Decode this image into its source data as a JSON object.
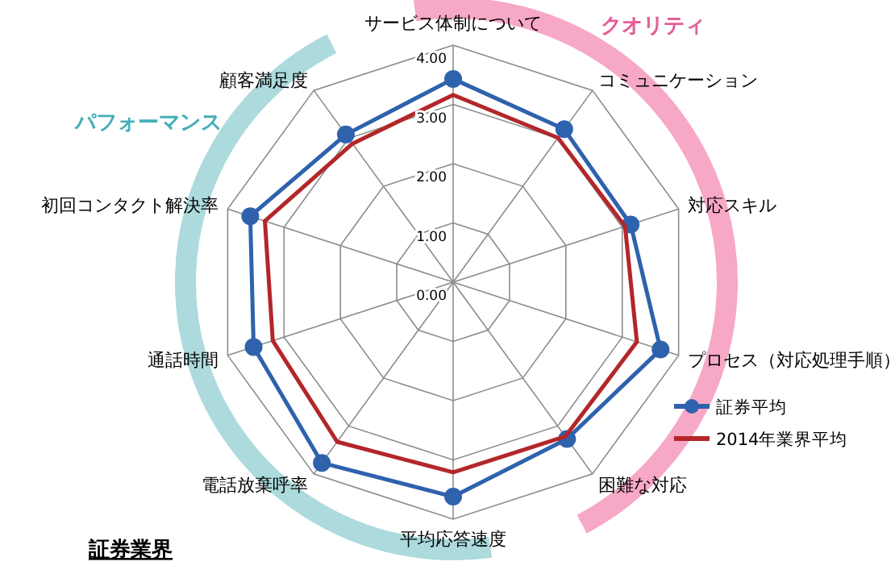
{
  "chart_data": {
    "type": "radar",
    "title": "証券業界",
    "categories": [
      "サービス体制について",
      "コミュニケーション",
      "対応スキル",
      "プロセス（対応処理手順）",
      "困難な対応",
      "平均応答速度",
      "電話放棄呼率",
      "通話時間",
      "初回コンタクト解決率",
      "顧客満足度"
    ],
    "series": [
      {
        "name": "証券平均",
        "color": "#2f62ad",
        "marker": "circle",
        "values": [
          3.43,
          3.19,
          3.15,
          3.68,
          3.27,
          3.62,
          3.77,
          3.54,
          3.6,
          3.08
        ]
      },
      {
        "name": "2014年業界平均",
        "color": "#b3262a",
        "marker": "none",
        "values": [
          3.16,
          3.01,
          3.05,
          3.26,
          3.22,
          3.21,
          3.33,
          3.2,
          3.34,
          2.89
        ]
      }
    ],
    "ylim": [
      0,
      4
    ],
    "yticks": [
      {
        "value": 0,
        "label": "0.00"
      },
      {
        "value": 1,
        "label": "1.00"
      },
      {
        "value": 2,
        "label": "2.00"
      },
      {
        "value": 3,
        "label": "3.00"
      },
      {
        "value": 4,
        "label": "4.00"
      }
    ],
    "grid": true,
    "legend": "bottom right",
    "annotations": [
      "クオリティ",
      "パフォーマンス"
    ]
  }
}
